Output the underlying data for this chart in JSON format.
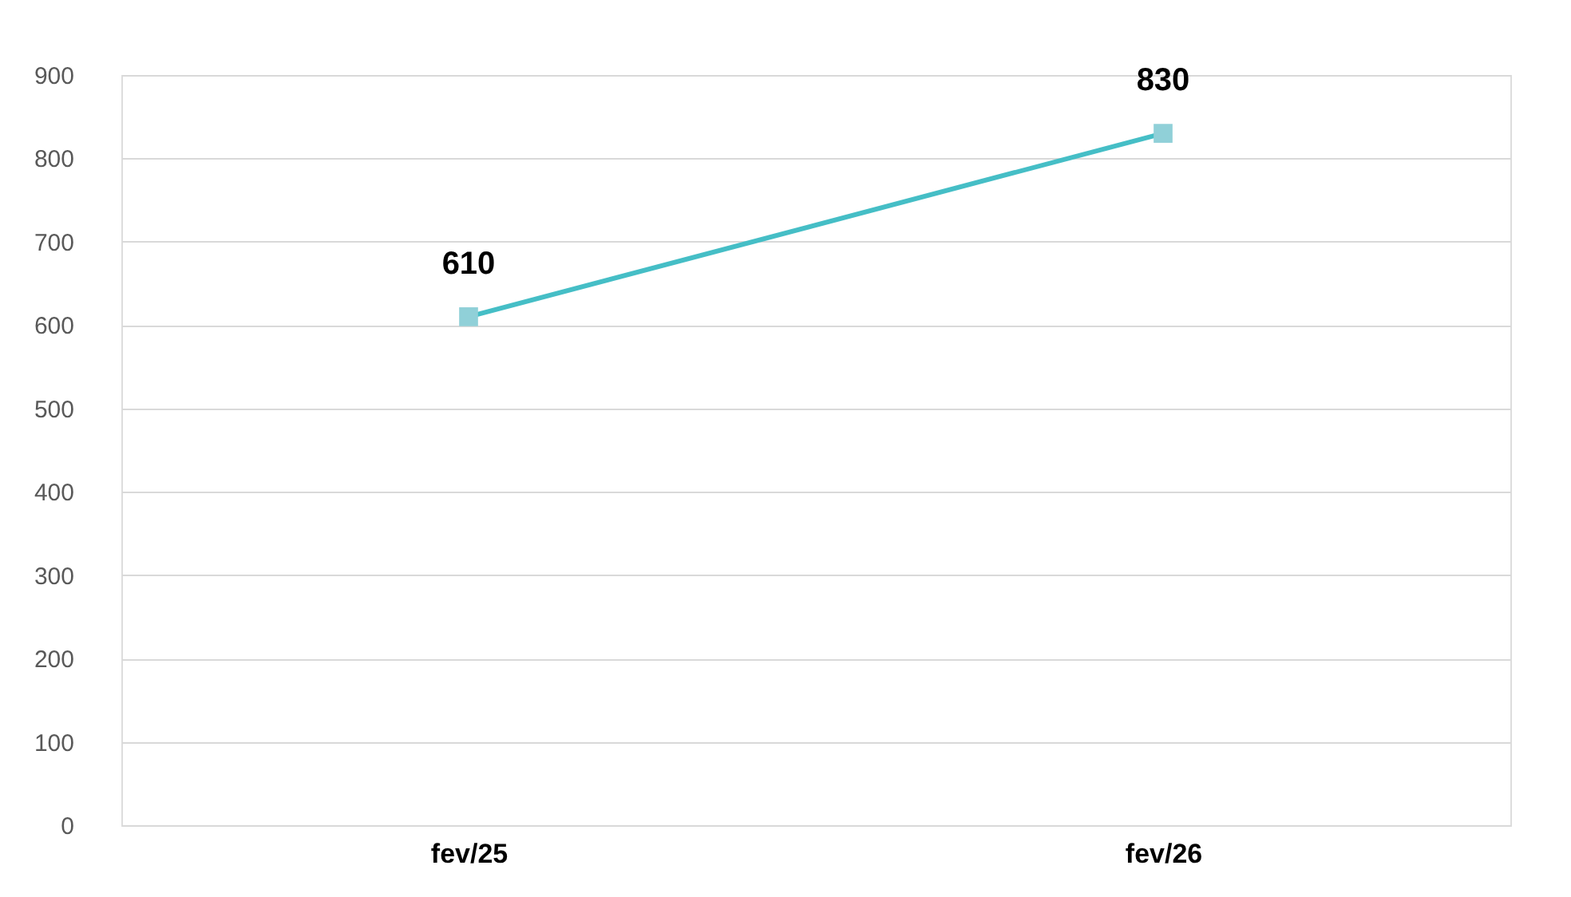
{
  "chart_data": {
    "type": "line",
    "categories": [
      "fev/25",
      "fev/26"
    ],
    "series": [
      {
        "color": "#45bec6",
        "values": [
          610,
          830
        ]
      }
    ],
    "ylim": [
      0,
      900
    ],
    "yticks": [
      0,
      100,
      200,
      300,
      400,
      500,
      600,
      700,
      800,
      900
    ],
    "grid": "y",
    "marker": "square",
    "line_style": "solid",
    "data_labels": true,
    "legend": false
  }
}
